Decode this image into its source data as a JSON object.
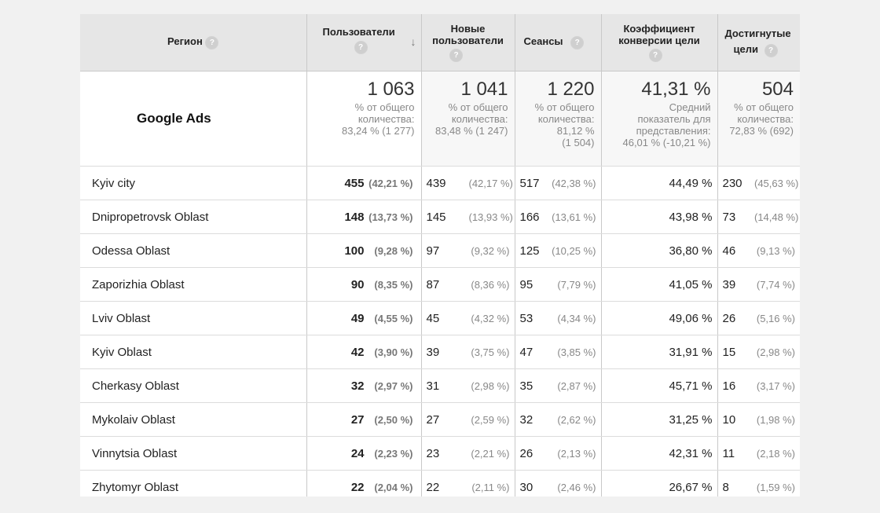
{
  "columns": {
    "region": "Регион",
    "users": "Пользователи",
    "new_users_1": "Новые",
    "new_users_2": "пользователи",
    "sessions": "Сеансы",
    "conversion_1": "Коэффициент",
    "conversion_2": "конверсии цели",
    "goals_1": "Достигнутые",
    "goals_2": "цели",
    "help_glyph": "?",
    "sort_glyph": "↓"
  },
  "summary": {
    "segment": "Google Ads",
    "users": {
      "value": "1 063",
      "l1": "% от общего",
      "l2": "количества:",
      "l3": "83,24 % (1 277)"
    },
    "new_users": {
      "value": "1 041",
      "l1": "% от общего",
      "l2": "количества:",
      "l3": "83,48 % (1 247)"
    },
    "sessions": {
      "value": "1 220",
      "l1": "% от общего",
      "l2": "количества:",
      "l3": "81,12 %",
      "l4": "(1 504)"
    },
    "conversion": {
      "value": "41,31 %",
      "l1": "Средний",
      "l2": "показатель для",
      "l3": "представления:",
      "l4": "46,01 % (-10,21 %)"
    },
    "goals": {
      "value": "504",
      "l1": "% от общего",
      "l2": "количества:",
      "l3": "72,83 % (692)"
    }
  },
  "rows": [
    {
      "region": "Kyiv city",
      "users": "455",
      "users_pct": "(42,21 %)",
      "new_users": "439",
      "new_users_pct": "(42,17 %)",
      "sessions": "517",
      "sessions_pct": "(42,38 %)",
      "conversion": "44,49 %",
      "goals": "230",
      "goals_pct": "(45,63 %)"
    },
    {
      "region": "Dnipropetrovsk Oblast",
      "users": "148",
      "users_pct": "(13,73 %)",
      "new_users": "145",
      "new_users_pct": "(13,93 %)",
      "sessions": "166",
      "sessions_pct": "(13,61 %)",
      "conversion": "43,98 %",
      "goals": "73",
      "goals_pct": "(14,48 %)"
    },
    {
      "region": "Odessa Oblast",
      "users": "100",
      "users_pct": "(9,28 %)",
      "new_users": "97",
      "new_users_pct": "(9,32 %)",
      "sessions": "125",
      "sessions_pct": "(10,25 %)",
      "conversion": "36,80 %",
      "goals": "46",
      "goals_pct": "(9,13 %)"
    },
    {
      "region": "Zaporizhia Oblast",
      "users": "90",
      "users_pct": "(8,35 %)",
      "new_users": "87",
      "new_users_pct": "(8,36 %)",
      "sessions": "95",
      "sessions_pct": "(7,79 %)",
      "conversion": "41,05 %",
      "goals": "39",
      "goals_pct": "(7,74 %)"
    },
    {
      "region": "Lviv Oblast",
      "users": "49",
      "users_pct": "(4,55 %)",
      "new_users": "45",
      "new_users_pct": "(4,32 %)",
      "sessions": "53",
      "sessions_pct": "(4,34 %)",
      "conversion": "49,06 %",
      "goals": "26",
      "goals_pct": "(5,16 %)"
    },
    {
      "region": "Kyiv Oblast",
      "users": "42",
      "users_pct": "(3,90 %)",
      "new_users": "39",
      "new_users_pct": "(3,75 %)",
      "sessions": "47",
      "sessions_pct": "(3,85 %)",
      "conversion": "31,91 %",
      "goals": "15",
      "goals_pct": "(2,98 %)"
    },
    {
      "region": "Cherkasy Oblast",
      "users": "32",
      "users_pct": "(2,97 %)",
      "new_users": "31",
      "new_users_pct": "(2,98 %)",
      "sessions": "35",
      "sessions_pct": "(2,87 %)",
      "conversion": "45,71 %",
      "goals": "16",
      "goals_pct": "(3,17 %)"
    },
    {
      "region": "Mykolaiv Oblast",
      "users": "27",
      "users_pct": "(2,50 %)",
      "new_users": "27",
      "new_users_pct": "(2,59 %)",
      "sessions": "32",
      "sessions_pct": "(2,62 %)",
      "conversion": "31,25 %",
      "goals": "10",
      "goals_pct": "(1,98 %)"
    },
    {
      "region": "Vinnytsia Oblast",
      "users": "24",
      "users_pct": "(2,23 %)",
      "new_users": "23",
      "new_users_pct": "(2,21 %)",
      "sessions": "26",
      "sessions_pct": "(2,13 %)",
      "conversion": "42,31 %",
      "goals": "11",
      "goals_pct": "(2,18 %)"
    },
    {
      "region": "Zhytomyr Oblast",
      "users": "22",
      "users_pct": "(2,04 %)",
      "new_users": "22",
      "new_users_pct": "(2,11 %)",
      "sessions": "30",
      "sessions_pct": "(2,46 %)",
      "conversion": "26,67 %",
      "goals": "8",
      "goals_pct": "(1,59 %)"
    }
  ]
}
